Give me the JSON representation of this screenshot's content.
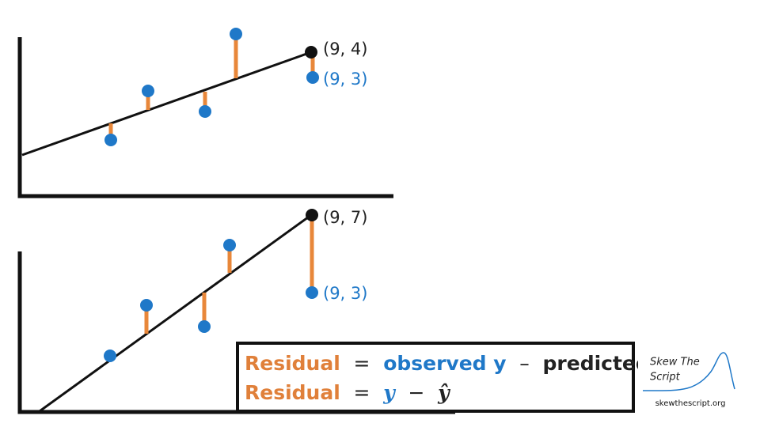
{
  "top_plot": {
    "predicted_label": "(9, 4)",
    "observed_label": "(9, 3)"
  },
  "bottom_plot": {
    "predicted_label": "(9, 7)",
    "observed_label": "(9, 3)"
  },
  "formula": {
    "line1": {
      "term": "Residual",
      "equals": "=",
      "observed": "observed y",
      "minus": "–",
      "predicted": "predicted y"
    },
    "line2": {
      "term": "Residual",
      "equals": "=",
      "observed": "y",
      "minus": "−",
      "predicted": "ŷ"
    }
  },
  "logo": {
    "line1": "Skew The",
    "line2": "Script",
    "url": "skewthescript.org"
  }
}
